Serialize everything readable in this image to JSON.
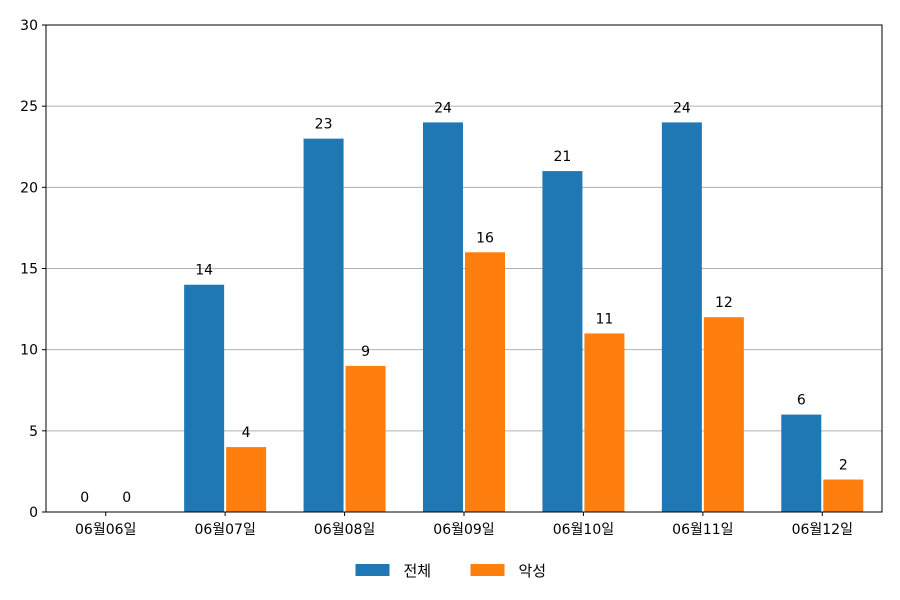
{
  "chart_data": {
    "type": "bar",
    "categories": [
      "06월06일",
      "06월07일",
      "06월08일",
      "06월09일",
      "06월10일",
      "06월11일",
      "06월12일"
    ],
    "series": [
      {
        "name": "전체",
        "values": [
          0,
          14,
          23,
          24,
          21,
          24,
          6
        ],
        "color": "#1f77b4"
      },
      {
        "name": "악성",
        "values": [
          0,
          4,
          9,
          16,
          11,
          12,
          2
        ],
        "color": "#ff7f0e"
      }
    ],
    "yticks": [
      0,
      5,
      10,
      15,
      20,
      25,
      30
    ],
    "ylim": [
      0,
      30
    ],
    "grid": true,
    "legend_position": "bottom-center",
    "data_labels": true
  }
}
